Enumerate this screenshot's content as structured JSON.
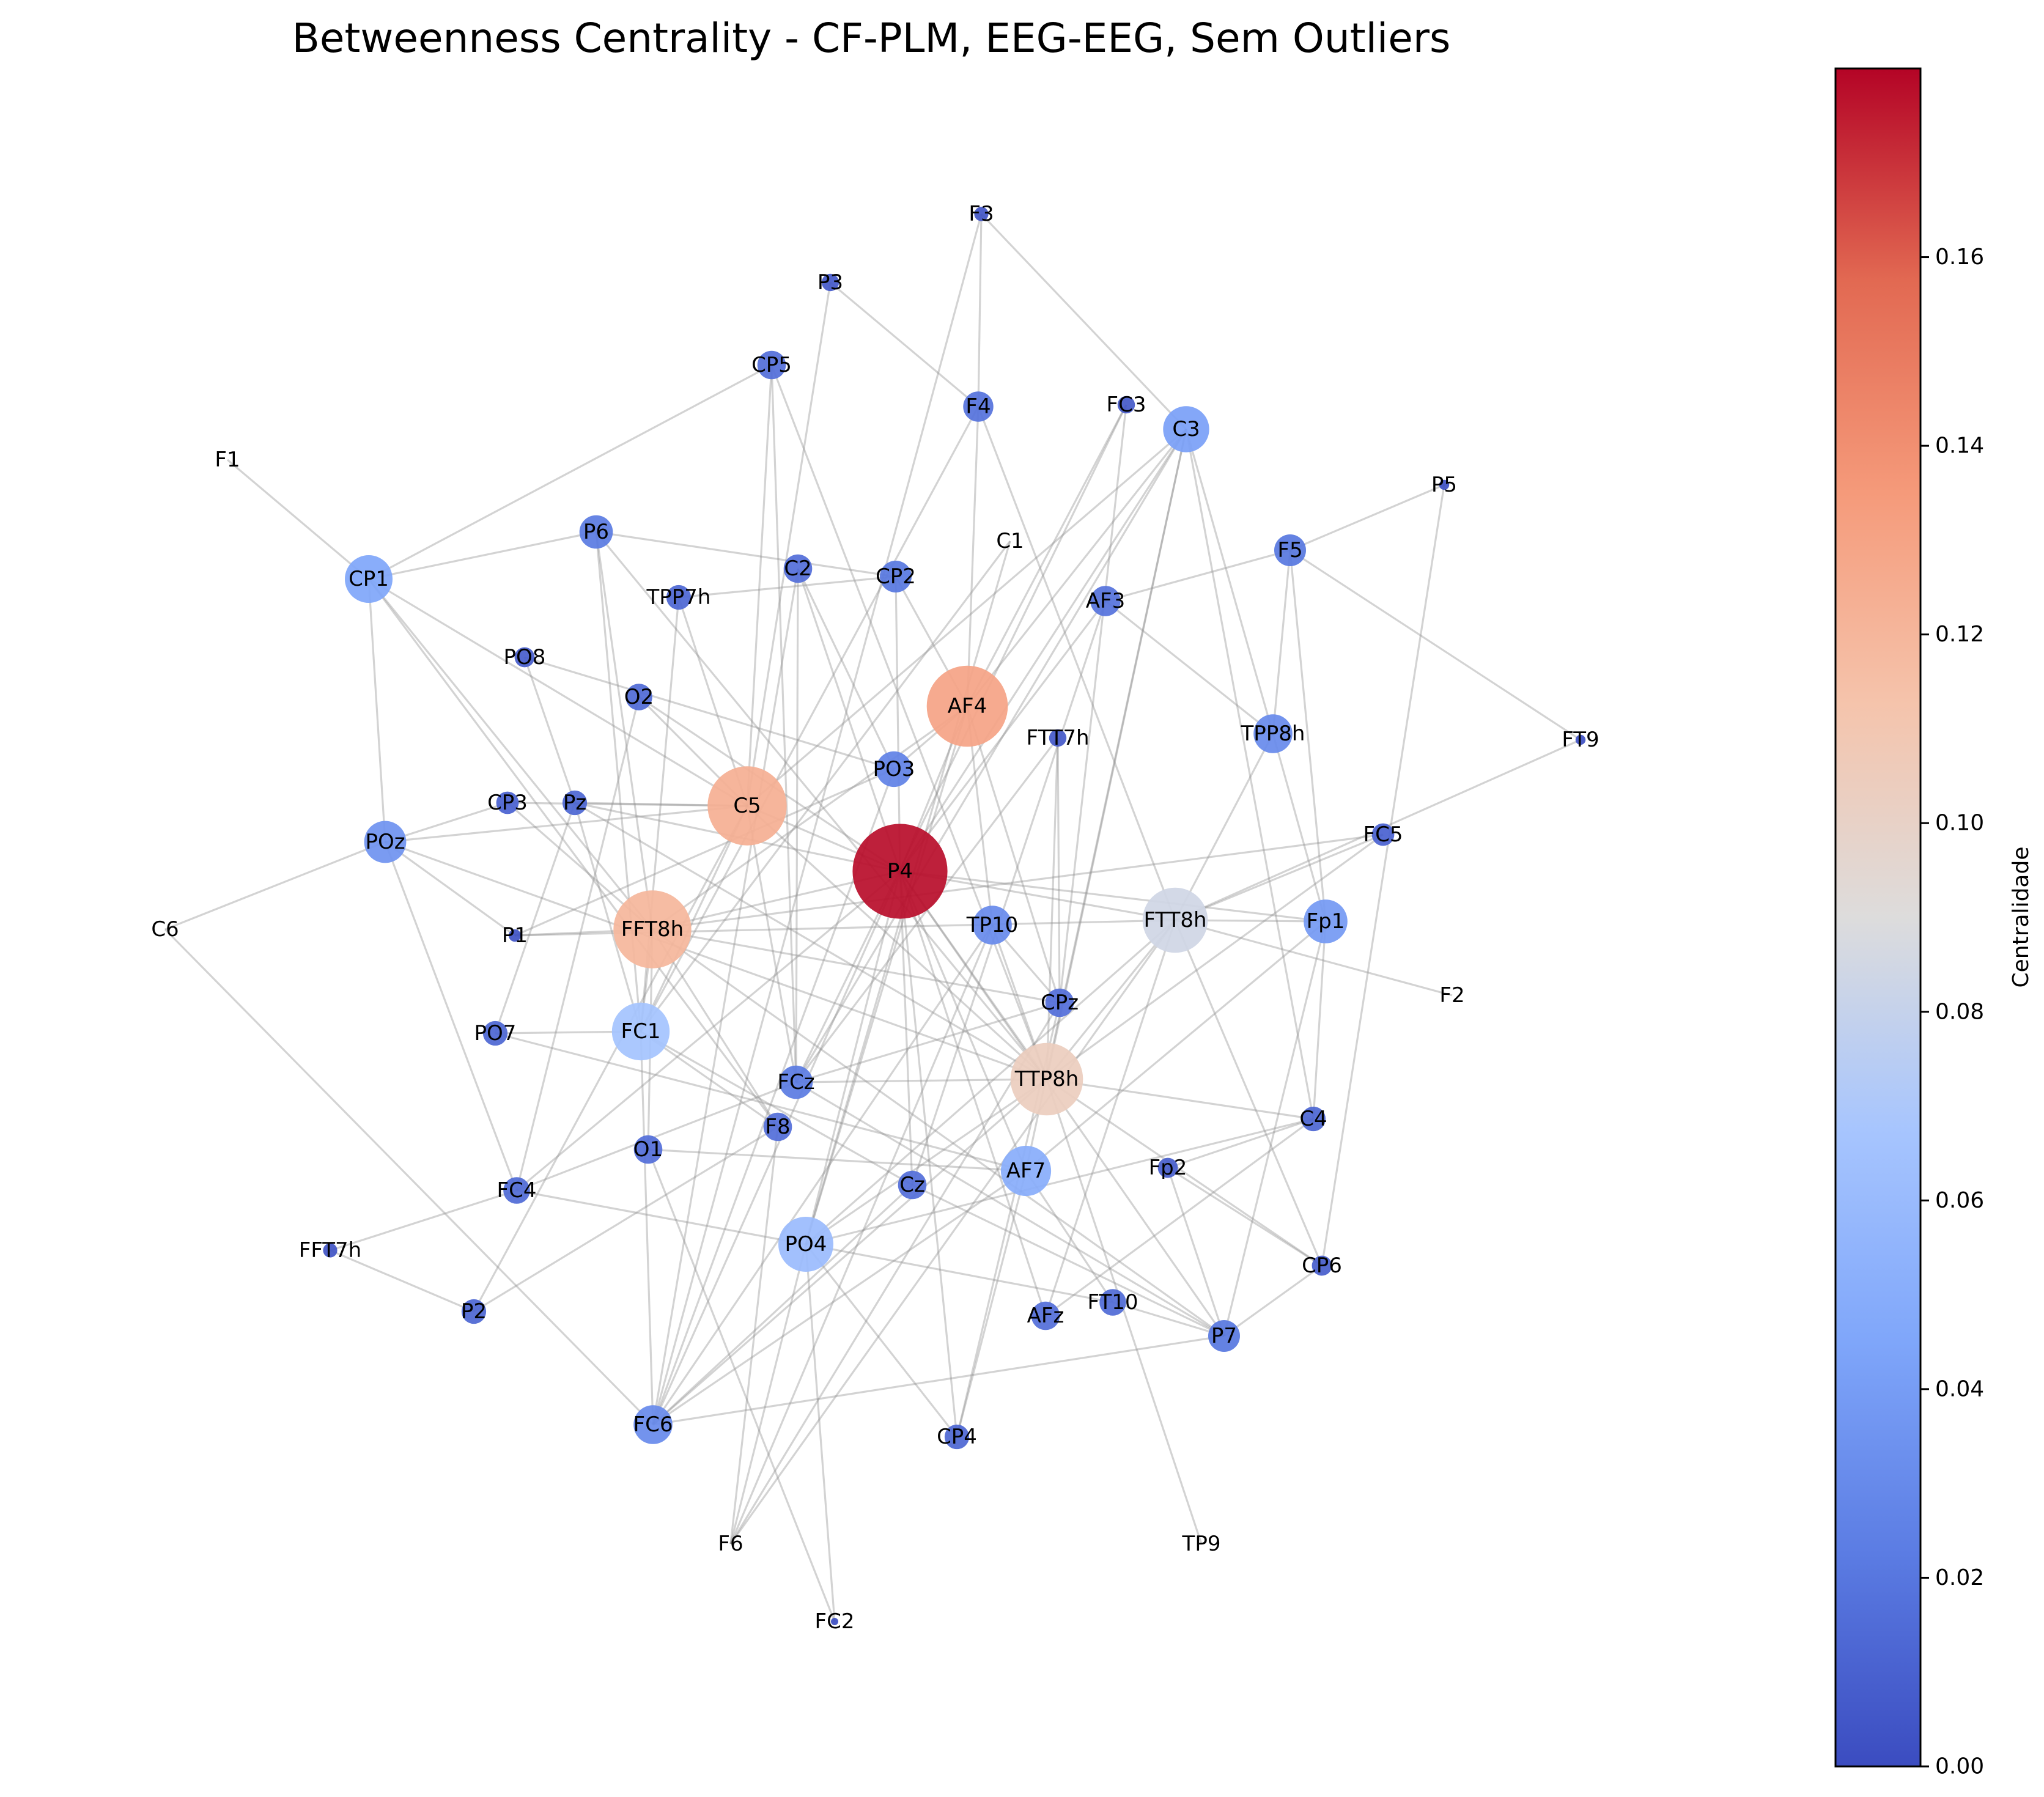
{
  "title": "Betweenness Centrality - CF-PLM, EEG-EEG, Sem Outliers",
  "colorbar": {
    "label": "Centralidade",
    "colormap": "coolwarm",
    "min": 0.0,
    "max": 0.18,
    "ticks": [
      "0.00",
      "0.02",
      "0.04",
      "0.06",
      "0.08",
      "0.10",
      "0.12",
      "0.14",
      "0.16"
    ]
  },
  "chart_data": {
    "type": "network",
    "metric": "betweenness centrality",
    "nodes": [
      {
        "id": "P4",
        "centrality": 0.178
      },
      {
        "id": "AF4",
        "centrality": 0.13
      },
      {
        "id": "C5",
        "centrality": 0.124
      },
      {
        "id": "FFT8h",
        "centrality": 0.12
      },
      {
        "id": "TTP8h",
        "centrality": 0.104
      },
      {
        "id": "FTT8h",
        "centrality": 0.084
      },
      {
        "id": "FC1",
        "centrality": 0.066
      },
      {
        "id": "PO4",
        "centrality": 0.06
      },
      {
        "id": "AF7",
        "centrality": 0.05
      },
      {
        "id": "CP1",
        "centrality": 0.045
      },
      {
        "id": "C3",
        "centrality": 0.042
      },
      {
        "id": "Fp1",
        "centrality": 0.038
      },
      {
        "id": "POz",
        "centrality": 0.035
      },
      {
        "id": "TP10",
        "centrality": 0.03
      },
      {
        "id": "TPP8h",
        "centrality": 0.03
      },
      {
        "id": "FC6",
        "centrality": 0.03
      },
      {
        "id": "PO3",
        "centrality": 0.025
      },
      {
        "id": "P6",
        "centrality": 0.022
      },
      {
        "id": "FCz",
        "centrality": 0.022
      },
      {
        "id": "CP2",
        "centrality": 0.02
      },
      {
        "id": "F5",
        "centrality": 0.02
      },
      {
        "id": "AF3",
        "centrality": 0.018
      },
      {
        "id": "F4",
        "centrality": 0.018
      },
      {
        "id": "CP5",
        "centrality": 0.016
      },
      {
        "id": "C2",
        "centrality": 0.016
      },
      {
        "id": "F8",
        "centrality": 0.016
      },
      {
        "id": "O1",
        "centrality": 0.016
      },
      {
        "id": "Cz",
        "centrality": 0.016
      },
      {
        "id": "P7",
        "centrality": 0.02
      },
      {
        "id": "AFz",
        "centrality": 0.016
      },
      {
        "id": "FT10",
        "centrality": 0.014
      },
      {
        "id": "CPz",
        "centrality": 0.016
      },
      {
        "id": "O2",
        "centrality": 0.014
      },
      {
        "id": "TPP7h",
        "centrality": 0.012
      },
      {
        "id": "FC4",
        "centrality": 0.014
      },
      {
        "id": "P2",
        "centrality": 0.012
      },
      {
        "id": "CP4",
        "centrality": 0.012
      },
      {
        "id": "C4",
        "centrality": 0.012
      },
      {
        "id": "Pz",
        "centrality": 0.012
      },
      {
        "id": "PO7",
        "centrality": 0.012
      },
      {
        "id": "FC5",
        "centrality": 0.01
      },
      {
        "id": "CP3",
        "centrality": 0.01
      },
      {
        "id": "PO8",
        "centrality": 0.008
      },
      {
        "id": "Fp2",
        "centrality": 0.008
      },
      {
        "id": "CP6",
        "centrality": 0.008
      },
      {
        "id": "FC3",
        "centrality": 0.006
      },
      {
        "id": "FTT7h",
        "centrality": 0.006
      },
      {
        "id": "P3",
        "centrality": 0.006
      },
      {
        "id": "F3",
        "centrality": 0.004
      },
      {
        "id": "FFT7h",
        "centrality": 0.004
      },
      {
        "id": "P1",
        "centrality": 0.003
      },
      {
        "id": "P5",
        "centrality": 0.002
      },
      {
        "id": "FT9",
        "centrality": 0.002
      },
      {
        "id": "FC2",
        "centrality": 0.001
      },
      {
        "id": "C1",
        "centrality": 0.0
      },
      {
        "id": "F1",
        "centrality": 0.0
      },
      {
        "id": "C6",
        "centrality": 0.0
      },
      {
        "id": "F2",
        "centrality": 0.0
      },
      {
        "id": "F6",
        "centrality": 0.0
      },
      {
        "id": "TP9",
        "centrality": 0.0
      }
    ],
    "edges": [
      [
        "F3",
        "F4"
      ],
      [
        "F3",
        "FC6"
      ],
      [
        "F3",
        "C3"
      ],
      [
        "P3",
        "C5"
      ],
      [
        "P3",
        "F4"
      ],
      [
        "CP5",
        "CP1"
      ],
      [
        "CP5",
        "C5"
      ],
      [
        "CP5",
        "FCz"
      ],
      [
        "CP5",
        "TTP8h"
      ],
      [
        "F4",
        "AF4"
      ],
      [
        "F4",
        "FTT8h"
      ],
      [
        "F4",
        "FC1"
      ],
      [
        "FC3",
        "AF4"
      ],
      [
        "FC3",
        "FCz"
      ],
      [
        "FC3",
        "CPz"
      ],
      [
        "C3",
        "AF4"
      ],
      [
        "C3",
        "P4"
      ],
      [
        "C3",
        "TPP8h"
      ],
      [
        "C3",
        "C5"
      ],
      [
        "C3",
        "AF7"
      ],
      [
        "C3",
        "FCz"
      ],
      [
        "C3",
        "TTP8h"
      ],
      [
        "C3",
        "C4"
      ],
      [
        "F1",
        "CP1"
      ],
      [
        "P5",
        "F5"
      ],
      [
        "P5",
        "CP6"
      ],
      [
        "CP1",
        "P6"
      ],
      [
        "CP1",
        "POz"
      ],
      [
        "CP1",
        "C5"
      ],
      [
        "CP1",
        "FFT8h"
      ],
      [
        "CP1",
        "F8"
      ],
      [
        "P6",
        "CP2"
      ],
      [
        "P6",
        "FFT8h"
      ],
      [
        "P6",
        "TTP8h"
      ],
      [
        "P6",
        "FC1"
      ],
      [
        "C1",
        "PO4"
      ],
      [
        "C1",
        "FC1"
      ],
      [
        "C2",
        "FC6"
      ],
      [
        "C2",
        "P4"
      ],
      [
        "C2",
        "PO3"
      ],
      [
        "C2",
        "FCz"
      ],
      [
        "CP2",
        "AF4"
      ],
      [
        "CP2",
        "P4"
      ],
      [
        "CP2",
        "TPP7h"
      ],
      [
        "TPP7h",
        "C5"
      ],
      [
        "TPP7h",
        "FC1"
      ],
      [
        "F5",
        "TPP8h"
      ],
      [
        "F5",
        "Fp1"
      ],
      [
        "F5",
        "FT9"
      ],
      [
        "F5",
        "AF3"
      ],
      [
        "AF3",
        "P4"
      ],
      [
        "AF3",
        "TPP8h"
      ],
      [
        "AF3",
        "Cz"
      ],
      [
        "PO8",
        "Pz"
      ],
      [
        "PO8",
        "PO3"
      ],
      [
        "O2",
        "P4"
      ],
      [
        "O2",
        "C5"
      ],
      [
        "O2",
        "FC4"
      ],
      [
        "AF4",
        "P4"
      ],
      [
        "AF4",
        "FFT8h"
      ],
      [
        "AF4",
        "CPz"
      ],
      [
        "AF4",
        "PO3"
      ],
      [
        "AF4",
        "TP10"
      ],
      [
        "AF4",
        "PO4"
      ],
      [
        "FTT7h",
        "TTP8h"
      ],
      [
        "FTT7h",
        "CPz"
      ],
      [
        "FTT7h",
        "FCz"
      ],
      [
        "TPP8h",
        "FTT8h"
      ],
      [
        "TPP8h",
        "Fp1"
      ],
      [
        "FT9",
        "FTT8h"
      ],
      [
        "CP3",
        "C5"
      ],
      [
        "CP3",
        "POz"
      ],
      [
        "CP3",
        "FFT8h"
      ],
      [
        "Pz",
        "C5"
      ],
      [
        "Pz",
        "P4"
      ],
      [
        "Pz",
        "TTP8h"
      ],
      [
        "Pz",
        "PO7"
      ],
      [
        "Pz",
        "FC1"
      ],
      [
        "POz",
        "C5"
      ],
      [
        "POz",
        "P1"
      ],
      [
        "POz",
        "FC4"
      ],
      [
        "POz",
        "TTP8h"
      ],
      [
        "POz",
        "C6"
      ],
      [
        "C5",
        "P4"
      ],
      [
        "C5",
        "FC1"
      ],
      [
        "C5",
        "FCz"
      ],
      [
        "C5",
        "TTP8h"
      ],
      [
        "C5",
        "P2"
      ],
      [
        "PO3",
        "FC6"
      ],
      [
        "PO3",
        "P1"
      ],
      [
        "P4",
        "FTT8h"
      ],
      [
        "P4",
        "FFT8h"
      ],
      [
        "P4",
        "TTP8h"
      ],
      [
        "P4",
        "PO4"
      ],
      [
        "P4",
        "FC6"
      ],
      [
        "P4",
        "AF7"
      ],
      [
        "P4",
        "Fp1"
      ],
      [
        "P4",
        "AFz"
      ],
      [
        "P4",
        "CP4"
      ],
      [
        "P4",
        "P7"
      ],
      [
        "P4",
        "Cz"
      ],
      [
        "P4",
        "FC4"
      ],
      [
        "FC5",
        "FTT8h"
      ],
      [
        "FC5",
        "FFT8h"
      ],
      [
        "FC5",
        "TTP8h"
      ],
      [
        "C6",
        "FC6"
      ],
      [
        "P1",
        "FFT8h"
      ],
      [
        "P1",
        "FTT8h"
      ],
      [
        "FFT8h",
        "FC1"
      ],
      [
        "FFT8h",
        "CPz"
      ],
      [
        "FFT8h",
        "F8"
      ],
      [
        "FFT8h",
        "O1"
      ],
      [
        "FFT8h",
        "P7"
      ],
      [
        "TP10",
        "TTP8h"
      ],
      [
        "TP10",
        "CPz"
      ],
      [
        "TP10",
        "FC6"
      ],
      [
        "TP10",
        "F6"
      ],
      [
        "FTT8h",
        "Fp1"
      ],
      [
        "FTT8h",
        "F2"
      ],
      [
        "FTT8h",
        "TTP8h"
      ],
      [
        "FTT8h",
        "PO4"
      ],
      [
        "FTT8h",
        "AFz"
      ],
      [
        "FTT8h",
        "CP6"
      ],
      [
        "FTT8h",
        "F6"
      ],
      [
        "Fp1",
        "C4"
      ],
      [
        "Fp1",
        "P7"
      ],
      [
        "Fp1",
        "AF7"
      ],
      [
        "PO7",
        "FC1"
      ],
      [
        "PO7",
        "AF7"
      ],
      [
        "FC1",
        "Cz"
      ],
      [
        "FC1",
        "F8"
      ],
      [
        "FC1",
        "FC6"
      ],
      [
        "CPz",
        "FCz"
      ],
      [
        "CPz",
        "CP4"
      ],
      [
        "CPz",
        "F6"
      ],
      [
        "FCz",
        "TTP8h"
      ],
      [
        "FCz",
        "P7"
      ],
      [
        "FCz",
        "FC4"
      ],
      [
        "TTP8h",
        "C4"
      ],
      [
        "TTP8h",
        "CP6"
      ],
      [
        "TTP8h",
        "PO4"
      ],
      [
        "TTP8h",
        "FC6"
      ],
      [
        "TTP8h",
        "TP9"
      ],
      [
        "C4",
        "AFz"
      ],
      [
        "C4",
        "Fp2"
      ],
      [
        "C4",
        "PO4"
      ],
      [
        "F8",
        "P2"
      ],
      [
        "F8",
        "F6"
      ],
      [
        "O1",
        "AF7"
      ],
      [
        "O1",
        "FC2"
      ],
      [
        "AF7",
        "FC6"
      ],
      [
        "AF7",
        "CP4"
      ],
      [
        "AF7",
        "FT10"
      ],
      [
        "FC4",
        "PO4"
      ],
      [
        "FC4",
        "FFT7h"
      ],
      [
        "Cz",
        "P7"
      ],
      [
        "Cz",
        "FC6"
      ],
      [
        "Fp2",
        "P7"
      ],
      [
        "Fp2",
        "CP6"
      ],
      [
        "FFT7h",
        "P2"
      ],
      [
        "PO4",
        "CP4"
      ],
      [
        "PO4",
        "FT10"
      ],
      [
        "PO4",
        "FC2"
      ],
      [
        "PO4",
        "F6"
      ],
      [
        "FT10",
        "P7"
      ],
      [
        "P7",
        "FC6"
      ],
      [
        "P7",
        "CP6"
      ]
    ]
  }
}
